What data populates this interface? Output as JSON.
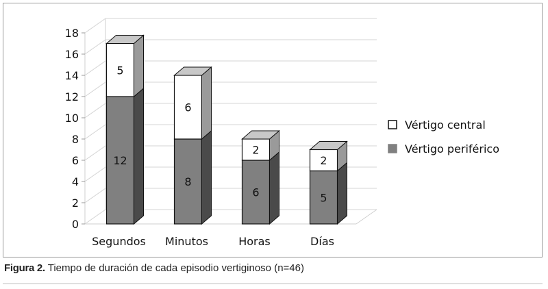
{
  "chart_data": {
    "type": "bar",
    "stacked": true,
    "three_d": true,
    "categories": [
      "Segundos",
      "Minutos",
      "Horas",
      "Días"
    ],
    "series": [
      {
        "name": "Vértigo periférico",
        "values": [
          12,
          8,
          6,
          5
        ],
        "color": "#808080"
      },
      {
        "name": "Vértigo central",
        "values": [
          5,
          6,
          2,
          2
        ],
        "color": "#ffffff"
      }
    ],
    "yticks": [
      0,
      2,
      4,
      6,
      8,
      10,
      12,
      14,
      16,
      18
    ],
    "ylim": [
      0,
      18
    ],
    "grid": true,
    "legend_position": "right"
  },
  "caption": {
    "label": "Figura 2.",
    "text": " Tiempo de duración de cada episodio vertiginoso (n=46)"
  }
}
